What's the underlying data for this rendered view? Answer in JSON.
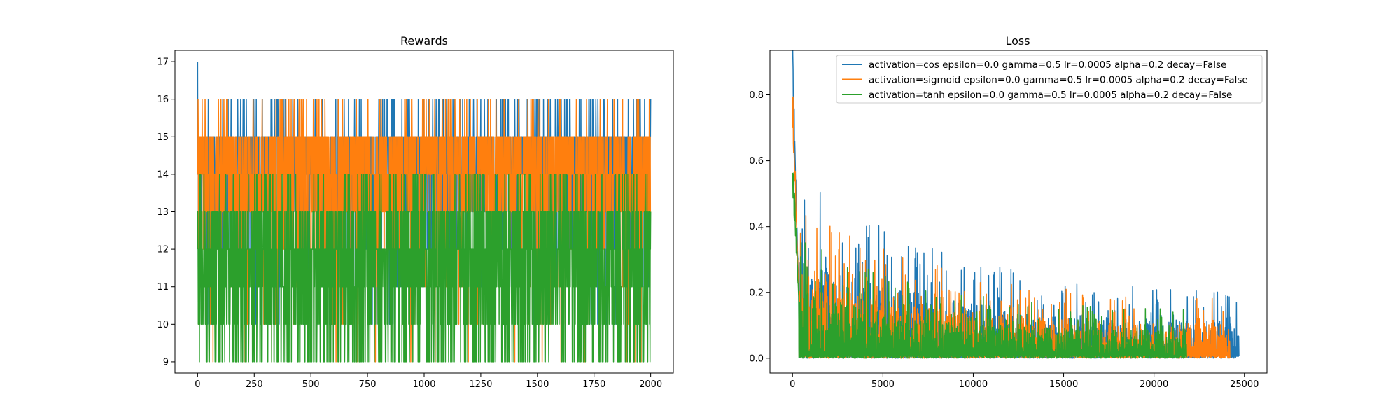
{
  "chart_data": [
    {
      "type": "line",
      "title": "Rewards",
      "xlabel": "",
      "ylabel": "",
      "xlim": [
        -100,
        2100
      ],
      "ylim": [
        8.7,
        17.3
      ],
      "xticks": [
        0,
        250,
        500,
        750,
        1000,
        1250,
        1500,
        1750,
        2000
      ],
      "yticks": [
        9,
        10,
        11,
        12,
        13,
        14,
        15,
        16,
        17
      ],
      "grid": false,
      "series": [
        {
          "color": "#1f77b4",
          "n_points": 2001,
          "min": 9,
          "max": 17,
          "typical_range": [
            13,
            15
          ],
          "first_value": 17
        },
        {
          "color": "#ff7f0e",
          "n_points": 2001,
          "min": 9,
          "max": 16,
          "typical_range": [
            13,
            15
          ]
        },
        {
          "color": "#2ca02c",
          "n_points": 2001,
          "min": 9,
          "max": 14,
          "typical_range": [
            10,
            13
          ]
        }
      ]
    },
    {
      "type": "line",
      "title": "Loss",
      "xlabel": "",
      "ylabel": "",
      "xlim": [
        -1250,
        26250
      ],
      "ylim": [
        -0.045,
        0.935
      ],
      "xticks": [
        0,
        5000,
        10000,
        15000,
        20000,
        25000
      ],
      "yticks": [
        0.0,
        0.2,
        0.4,
        0.6,
        0.8
      ],
      "grid": false,
      "legend_position": "top-right",
      "series": [
        {
          "name": "activation=cos epsilon=0.0 gamma=0.5 lr=0.0005 alpha=0.2 decay=False",
          "color": "#1f77b4",
          "x_end": 24700,
          "peak": 0.89,
          "spike_level_start": 0.45,
          "spike_level_end": 0.1
        },
        {
          "name": "activation=sigmoid epsilon=0.0 gamma=0.5 lr=0.0005 alpha=0.2 decay=False",
          "color": "#ff7f0e",
          "x_end": 24200,
          "peak": 0.78,
          "spike_level_start": 0.38,
          "spike_level_end": 0.1
        },
        {
          "name": "activation=tanh epsilon=0.0 gamma=0.5 lr=0.0005 alpha=0.2 decay=False",
          "color": "#2ca02c",
          "x_end": 21800,
          "peak": 0.58,
          "spike_level_start": 0.3,
          "spike_level_end": 0.08
        }
      ]
    }
  ]
}
